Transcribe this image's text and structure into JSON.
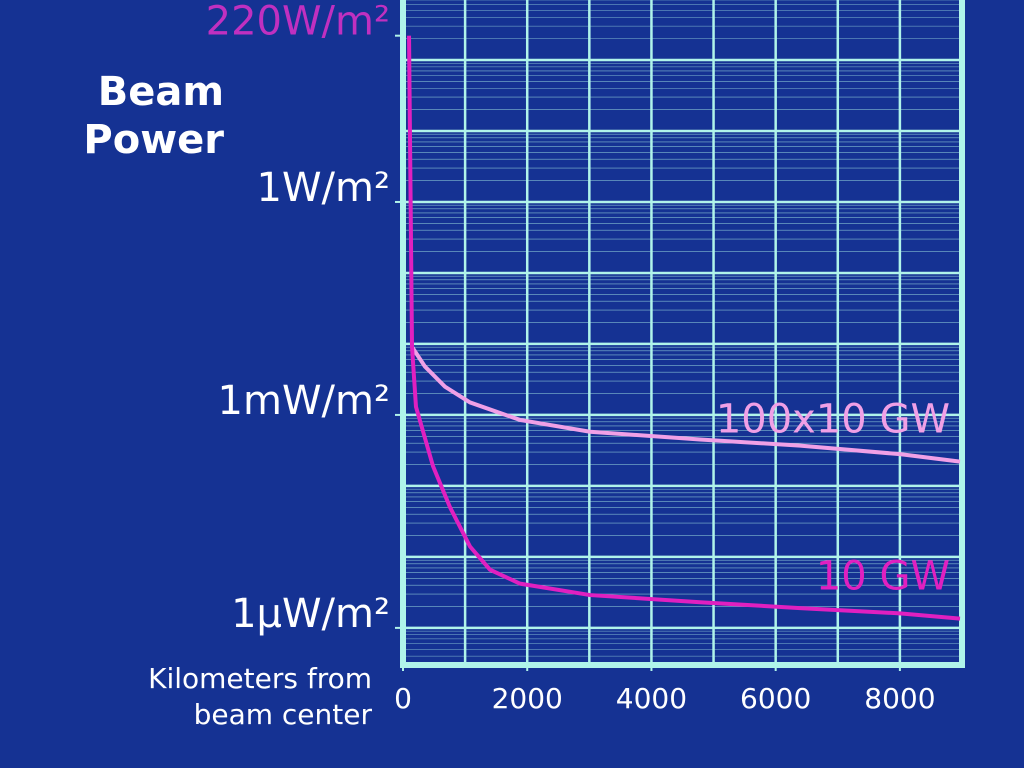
{
  "chart_data": {
    "type": "line",
    "title": "Beam Power",
    "x_label": "Kilometers from beam center",
    "log_y": true,
    "grid": true,
    "xlim": [
      0,
      9000
    ],
    "ylim": [
      3e-07,
      700
    ],
    "xticks": [
      0,
      2000,
      4000,
      6000,
      8000
    ],
    "yticks": [
      {
        "value": 220,
        "label": "220W/m²",
        "color": "#c030c0"
      },
      {
        "value": 1,
        "label": "1W/m²"
      },
      {
        "value": 0.001,
        "label": "1mW/m²"
      },
      {
        "value": 1e-06,
        "label": "1μW/m²"
      }
    ],
    "series": [
      {
        "name": "100x10 GW",
        "color": "#f0a0e6",
        "x": [
          145,
          354,
          676,
          1079,
          1884,
          3011,
          4782,
          6392,
          8002,
          8968
        ],
        "values": [
          0.0091,
          0.0048,
          0.0025,
          0.0015,
          0.00085,
          0.00058,
          0.00045,
          0.00037,
          0.00028,
          0.00022
        ]
      },
      {
        "name": "10 GW",
        "color": "#e020c0",
        "x": [
          97,
          145,
          209,
          483,
          757,
          1079,
          1401,
          1884,
          3011,
          4782,
          6392,
          8002,
          8968
        ],
        "values": [
          220,
          0.0091,
          0.0013,
          0.00019,
          5e-05,
          1.4e-05,
          6.6e-06,
          4.2e-06,
          2.9e-06,
          2.3e-06,
          1.9e-06,
          1.6e-06,
          1.35e-06
        ]
      }
    ]
  }
}
